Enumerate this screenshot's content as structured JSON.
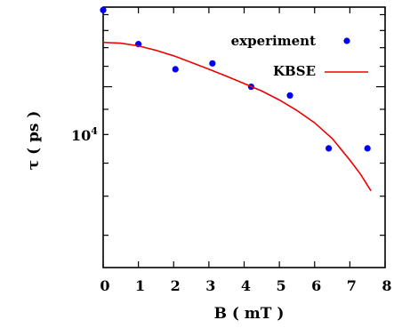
{
  "chart_data": {
    "type": "scatter",
    "title": "",
    "xlabel": "B ( mT )",
    "ylabel": "τ ( ps )",
    "xlim": [
      0,
      8
    ],
    "ylim": [
      4300,
      14500
    ],
    "y_scale": "log",
    "x_ticks": [
      "0",
      "1",
      "2",
      "3",
      "4",
      "5",
      "6",
      "7",
      "8"
    ],
    "y_tick_label": {
      "base": "10",
      "exponent": "4"
    },
    "legend_position": "top-right",
    "grid": false,
    "series": [
      {
        "name": "experiment",
        "kind": "points",
        "color": "#0000ee",
        "x": [
          0.0,
          1.0,
          2.05,
          3.1,
          4.2,
          5.3,
          6.4,
          7.5
        ],
        "y": [
          14300,
          12200,
          10850,
          11150,
          10000,
          9600,
          7500,
          7500
        ]
      },
      {
        "name": "KBSE",
        "kind": "line",
        "color": "#ee0000",
        "x": [
          0.0,
          0.5,
          1.0,
          1.5,
          2.0,
          2.5,
          3.0,
          3.5,
          4.0,
          4.5,
          5.0,
          5.5,
          6.0,
          6.5,
          7.0,
          7.3,
          7.6
        ],
        "y": [
          12300,
          12250,
          12100,
          11850,
          11550,
          11200,
          10850,
          10500,
          10150,
          9800,
          9400,
          8950,
          8450,
          7850,
          7100,
          6650,
          6150
        ]
      }
    ]
  }
}
